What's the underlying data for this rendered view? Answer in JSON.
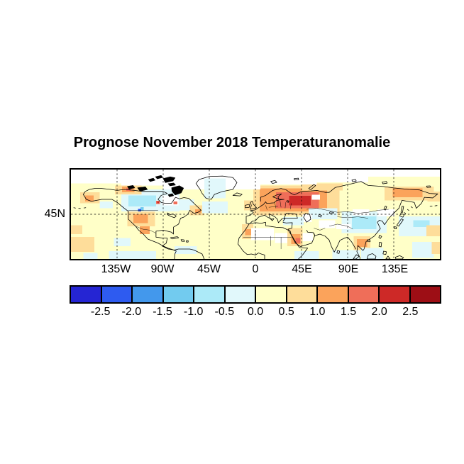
{
  "title": "Prognose November 2018 Temperaturanomalie",
  "chart_data": {
    "type": "heatmap",
    "subtype": "geographic-temperature-anomaly-forecast-map",
    "title": "Prognose November 2018 Temperaturanomalie",
    "projection": "equirectangular",
    "lon_range": [
      -180,
      180
    ],
    "lat_range": [
      0,
      90
    ],
    "grid": "dashed",
    "x_axis": {
      "tick_labels": [
        "135W",
        "90W",
        "45W",
        "0",
        "45E",
        "90E",
        "135E"
      ],
      "tick_lons": [
        -135,
        -90,
        -45,
        0,
        45,
        90,
        135
      ]
    },
    "y_axis": {
      "ticks": [
        "45N"
      ],
      "tick_lats": [
        45
      ]
    },
    "colorbar": {
      "orientation": "horizontal",
      "levels": [
        -3.0,
        -2.5,
        -2.0,
        -1.5,
        -1.0,
        -0.5,
        0.0,
        0.5,
        1.0,
        1.5,
        2.0,
        2.5,
        3.0
      ],
      "tick_labels": [
        "-2.5",
        "-2.0",
        "-1.5",
        "-1.0",
        "-0.5",
        "0.0",
        "0.5",
        "1.0",
        "1.5",
        "2.0",
        "2.5"
      ],
      "colors": [
        "#2525D3",
        "#2E5BF0",
        "#4398EC",
        "#72CBEF",
        "#ACEAF8",
        "#E1F8FB",
        "#FFFFC8",
        "#FEDD9A",
        "#FBA35B",
        "#EF6E59",
        "#CD2927",
        "#9D0E15"
      ]
    },
    "base_color_index": 6,
    "no_data_color": "#FFFFFF",
    "anomaly_patches_format": "[lon_west, lat_south, lon_east, lat_north, color_index (-1 = white/no-data)]",
    "anomaly_patches": [
      [
        -2,
        44,
        82,
        74,
        7
      ],
      [
        4,
        48,
        70,
        71,
        8
      ],
      [
        20,
        51,
        62,
        67,
        9
      ],
      [
        33,
        54,
        54,
        63.5,
        10
      ],
      [
        55,
        59.5,
        63,
        64.5,
        -1
      ],
      [
        45,
        69,
        85,
        76,
        7
      ],
      [
        -131,
        48,
        -74,
        70,
        5
      ],
      [
        -124,
        53,
        -97,
        64,
        4
      ],
      [
        -76,
        49,
        -60,
        60,
        5
      ],
      [
        -91,
        54,
        -75,
        64,
        -1
      ],
      [
        -112,
        48.5,
        -109,
        52,
        3
      ],
      [
        -114.5,
        48,
        -111.5,
        50.5,
        1
      ],
      [
        -97,
        55.5,
        -93,
        58.5,
        9
      ],
      [
        -96,
        56,
        -94,
        58,
        10
      ],
      [
        -80,
        55,
        -76,
        58,
        9
      ],
      [
        -137,
        65,
        -111,
        74,
        7
      ],
      [
        -130,
        67,
        -118,
        73,
        8
      ],
      [
        -126,
        68.5,
        -121,
        71.5,
        9
      ],
      [
        -171,
        56,
        -152,
        67,
        7
      ],
      [
        -166,
        58,
        -158,
        64,
        8
      ],
      [
        -125,
        33,
        -98,
        48,
        7
      ],
      [
        -119,
        36,
        -105,
        45,
        8
      ],
      [
        -113,
        25,
        -103,
        33,
        8
      ],
      [
        -64,
        44,
        -50,
        54,
        7
      ],
      [
        -59,
        46,
        -53,
        50,
        8
      ],
      [
        -152,
        51,
        -139,
        58,
        5
      ],
      [
        -52,
        46,
        -27,
        58,
        5
      ],
      [
        -180,
        83,
        180,
        90,
        -1
      ],
      [
        -90,
        70,
        5,
        84,
        -1
      ],
      [
        5,
        75,
        60,
        84,
        -1
      ],
      [
        60,
        77,
        110,
        84,
        -1
      ],
      [
        -131,
        74,
        -90,
        84,
        -1
      ],
      [
        -180,
        76,
        -131,
        84,
        -1
      ],
      [
        -50,
        61,
        -29,
        81,
        5
      ],
      [
        -11,
        49,
        3,
        59,
        7
      ],
      [
        -13,
        20,
        -2,
        35,
        7
      ],
      [
        -10,
        24,
        -4,
        30,
        8
      ],
      [
        -4,
        19,
        18,
        31,
        -1
      ],
      [
        19,
        16,
        33,
        26,
        -1
      ],
      [
        31,
        13,
        46,
        31,
        7
      ],
      [
        35,
        15,
        44,
        25,
        8
      ],
      [
        39,
        16,
        44,
        21,
        9
      ],
      [
        46,
        18,
        56,
        26,
        -1
      ],
      [
        52,
        40,
        80,
        51,
        5
      ],
      [
        46,
        37,
        55,
        45,
        -1
      ],
      [
        27,
        34,
        47,
        42,
        5
      ],
      [
        62,
        31,
        78,
        39,
        -1
      ],
      [
        84,
        26,
        128,
        48,
        5
      ],
      [
        94,
        30,
        118,
        43,
        4
      ],
      [
        79,
        30,
        93,
        35,
        -1
      ],
      [
        95,
        44,
        111,
        50,
        -1
      ],
      [
        119,
        43,
        136,
        50,
        -1
      ],
      [
        96,
        9,
        112,
        23,
        7
      ],
      [
        99,
        12,
        109,
        20,
        8
      ],
      [
        75,
        0,
        102,
        9,
        5
      ],
      [
        103,
        0,
        125,
        11,
        5
      ],
      [
        38,
        0,
        62,
        8,
        5
      ],
      [
        126,
        59,
        174,
        73,
        7
      ],
      [
        134,
        62,
        163,
        71,
        8
      ],
      [
        168,
        58,
        180,
        68,
        7
      ],
      [
        140,
        23,
        180,
        43,
        5
      ],
      [
        154,
        32,
        170,
        39,
        4
      ],
      [
        153,
        1,
        174,
        17,
        5
      ],
      [
        167,
        23,
        180,
        34,
        7
      ],
      [
        172,
        5,
        180,
        17,
        7
      ],
      [
        -180,
        7,
        -157,
        22,
        7
      ],
      [
        -180,
        25,
        -169,
        34,
        7
      ],
      [
        -143,
        0,
        -97,
        8,
        5
      ],
      [
        -138,
        13,
        -122,
        21,
        5
      ],
      [
        -168,
        0,
        -154,
        6,
        5
      ],
      [
        -79,
        5,
        -57,
        13,
        5
      ]
    ]
  }
}
